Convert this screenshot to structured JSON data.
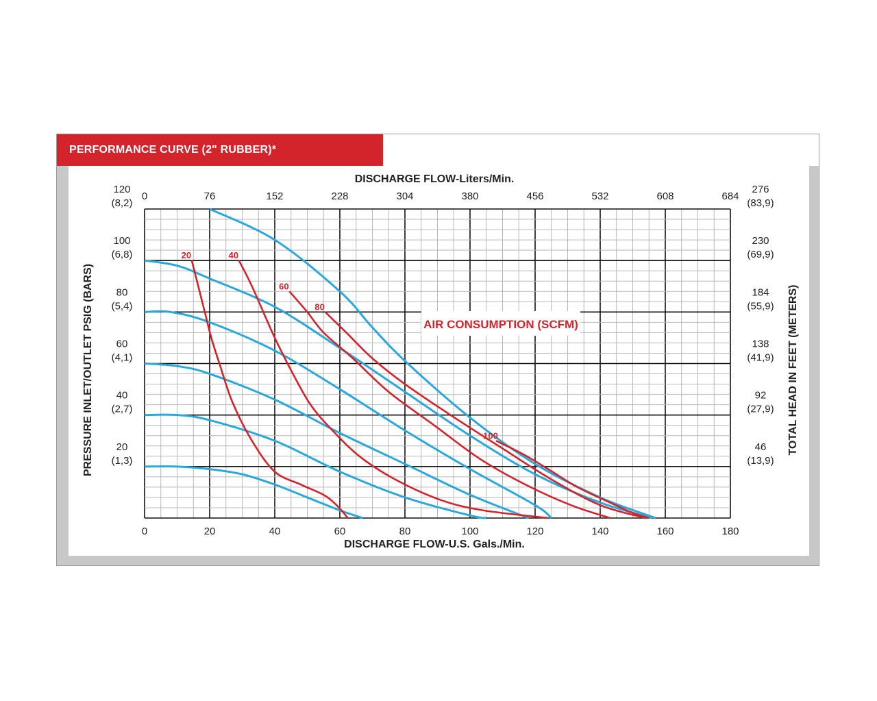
{
  "header": {
    "title": "PERFORMANCE CURVE (2\" RUBBER)*"
  },
  "colors": {
    "banner": "#d3242b",
    "pressure_curve": "#2aa8dc",
    "air_curve": "#d3242b",
    "frame": "#c8c8c8"
  },
  "chart_data": {
    "type": "line",
    "title": "PERFORMANCE CURVE (2\" RUBBER)*",
    "xlabel": "DISCHARGE FLOW-U.S. Gals./Min.",
    "x2label": "DISCHARGE FLOW-Liters/Min.",
    "ylabel": "PRESSURE INLET/OUTLET PSIG (BARS)",
    "y2label": "TOTAL HEAD IN FEET (METERS)",
    "annotation": "AIR CONSUMPTION (SCFM)",
    "xlim": [
      0,
      180
    ],
    "ylim": [
      0,
      120
    ],
    "grid": true,
    "x_ticks": [
      "0",
      "20",
      "40",
      "60",
      "80",
      "100",
      "120",
      "140",
      "160",
      "180"
    ],
    "x2_ticks": [
      "0",
      "76",
      "152",
      "228",
      "304",
      "380",
      "456",
      "532",
      "608",
      "684"
    ],
    "y_ticks": [
      {
        "value": 120,
        "label": "120",
        "sub": "(8,2)"
      },
      {
        "value": 100,
        "label": "100",
        "sub": "(6,8)"
      },
      {
        "value": 80,
        "label": "80",
        "sub": "(5,4)"
      },
      {
        "value": 60,
        "label": "60",
        "sub": "(4,1)"
      },
      {
        "value": 40,
        "label": "40",
        "sub": "(2,7)"
      },
      {
        "value": 20,
        "label": "20",
        "sub": "(1,3)"
      }
    ],
    "y2_ticks": [
      {
        "value": 120,
        "label": "276",
        "sub": "(83,9)"
      },
      {
        "value": 100,
        "label": "230",
        "sub": "(69,9)"
      },
      {
        "value": 80,
        "label": "184",
        "sub": "(55,9)"
      },
      {
        "value": 60,
        "label": "138",
        "sub": "(41,9)"
      },
      {
        "value": 40,
        "label": "92",
        "sub": "(27,9)"
      },
      {
        "value": 20,
        "label": "46",
        "sub": "(13,9)"
      }
    ],
    "pressure_series": [
      {
        "x": [
          20,
          40,
          60,
          70,
          80,
          100,
          120,
          140,
          157
        ],
        "y": [
          120,
          108,
          88,
          74,
          61,
          39,
          21,
          8,
          0
        ]
      },
      {
        "x": [
          0,
          10,
          20,
          40,
          60,
          80,
          100,
          120,
          140,
          156
        ],
        "y": [
          100,
          98,
          93,
          82,
          66,
          49,
          32,
          17,
          6,
          0
        ]
      },
      {
        "x": [
          0,
          8,
          20,
          40,
          60,
          80,
          100,
          120,
          125
        ],
        "y": [
          80,
          80,
          76,
          65,
          50,
          34,
          19,
          5,
          0
        ]
      },
      {
        "x": [
          0,
          10,
          20,
          40,
          60,
          80,
          100,
          118
        ],
        "y": [
          60,
          59,
          56,
          46,
          33,
          21,
          9,
          0
        ]
      },
      {
        "x": [
          0,
          10,
          20,
          40,
          60,
          80,
          100,
          105
        ],
        "y": [
          40,
          40,
          38,
          30,
          18,
          8,
          1,
          0
        ]
      },
      {
        "x": [
          0,
          10,
          20,
          30,
          40,
          50,
          60,
          67
        ],
        "y": [
          20,
          20,
          19,
          17,
          13,
          8,
          3,
          0
        ]
      }
    ],
    "air_series": [
      {
        "name": "20",
        "x": [
          14.5,
          16.5,
          18.5,
          20.5,
          23,
          27,
          33,
          40,
          48,
          55,
          59,
          62.5
        ],
        "y": [
          100,
          90,
          80,
          70,
          60,
          45,
          30,
          18,
          13,
          9,
          5,
          0
        ]
      },
      {
        "name": "40",
        "x": [
          29,
          33,
          40,
          46,
          51,
          57,
          66,
          77,
          91,
          104,
          124
        ],
        "y": [
          100,
          90,
          70,
          55,
          44,
          35,
          24,
          15,
          7,
          3,
          0
        ]
      },
      {
        "name": "60",
        "x": [
          44.5,
          50,
          55,
          64,
          75,
          89,
          103,
          117,
          131,
          143
        ],
        "y": [
          88,
          80,
          72,
          62,
          49,
          36,
          23,
          13,
          5,
          0
        ]
      },
      {
        "name": "80",
        "x": [
          55.5,
          62,
          70,
          80,
          94,
          110,
          125,
          140,
          154
        ],
        "y": [
          80,
          72,
          62,
          52,
          40,
          27,
          15,
          5,
          0
        ]
      },
      {
        "name": "100",
        "x": [
          108,
          116,
          124,
          133,
          143,
          150,
          155
        ],
        "y": [
          30,
          25,
          19,
          12,
          6,
          2,
          0
        ]
      }
    ]
  }
}
